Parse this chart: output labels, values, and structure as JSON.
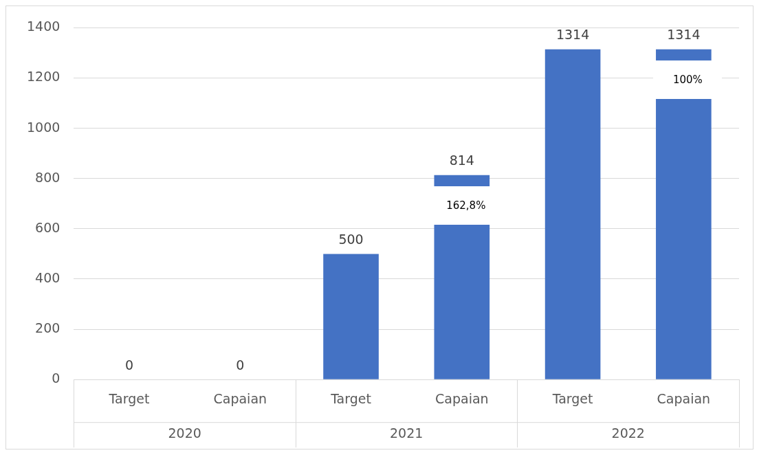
{
  "chart_data": {
    "type": "bar",
    "categories": [
      "Target",
      "Capaian",
      "Target",
      "Capaian",
      "Target",
      "Capaian"
    ],
    "values": [
      0,
      0,
      500,
      814,
      1314,
      1314
    ],
    "color": "#4472c4",
    "data_labels": true,
    "ylim": [
      0,
      1400
    ],
    "yticks": [
      0,
      200,
      400,
      600,
      800,
      1000,
      1200,
      1400
    ],
    "grid": "y",
    "legend": false,
    "annotations": [
      "2020",
      "2021",
      "2022",
      "162,8%",
      "100%"
    ]
  }
}
